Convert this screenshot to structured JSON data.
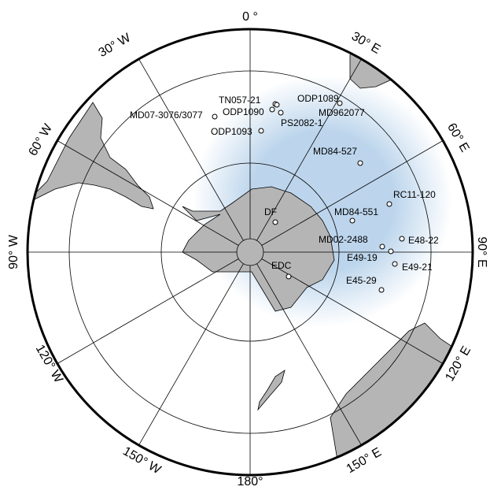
{
  "longitude_labels": [
    "0 °",
    "30° E",
    "60° E",
    "90° E",
    "120° E",
    "150° E",
    "180°",
    "150° W",
    "120° W",
    "90° W",
    "60° W",
    "30° W"
  ],
  "sites": [
    "TN057-21",
    "ODP1089",
    "ODP1090",
    "PS2082-1",
    "MD07-3076/3077",
    "MD962077",
    "ODP1093",
    "MD84-527",
    "DF",
    "MD84-551",
    "RC11-120",
    "E48-22",
    "MD02-2488",
    "E49-19",
    "E49-21",
    "EDC",
    "E45-29"
  ]
}
